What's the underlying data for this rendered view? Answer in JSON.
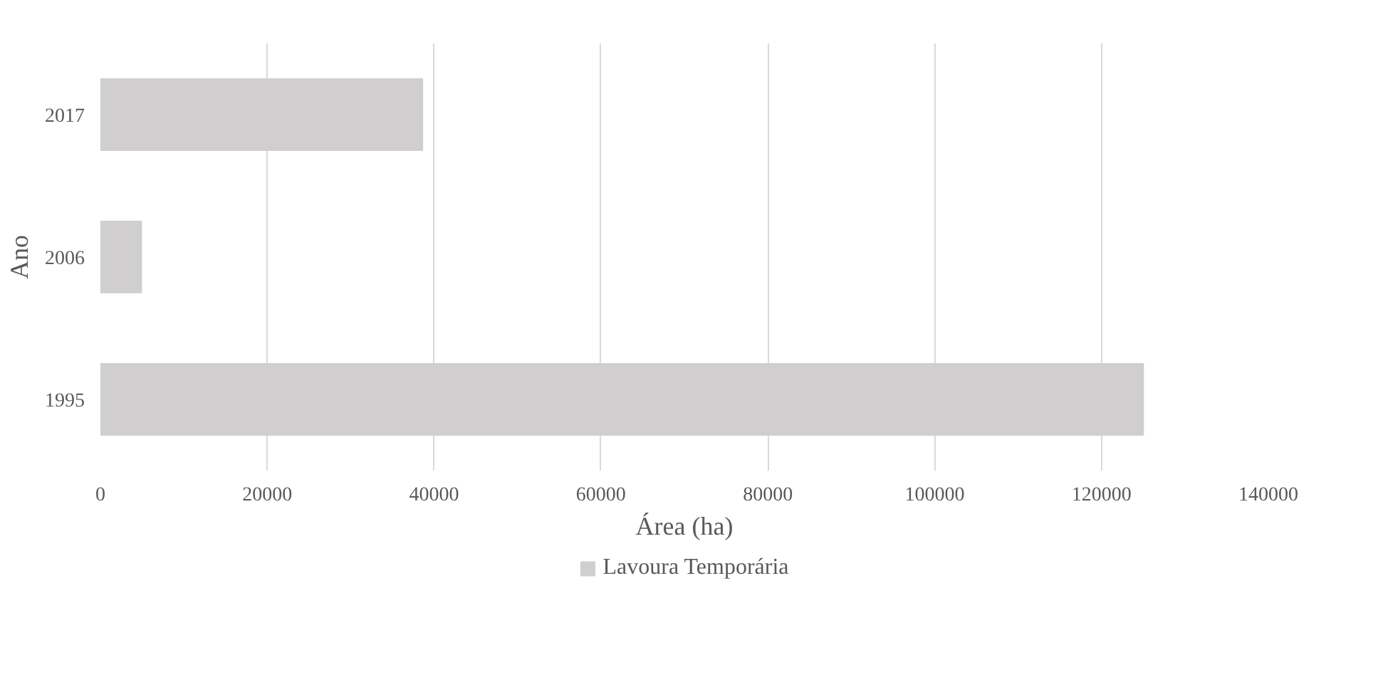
{
  "chart_data": {
    "type": "bar",
    "orientation": "horizontal",
    "categories": [
      "2017",
      "2006",
      "1995"
    ],
    "series": [
      {
        "name": "Lavoura Temporária",
        "color": "#d0cece",
        "values": [
          38600,
          4900,
          125000
        ]
      }
    ],
    "xlim": [
      0,
      140000
    ],
    "xticks": [
      0,
      20000,
      40000,
      60000,
      80000,
      100000,
      120000,
      140000
    ],
    "xlabel": "Área (ha)",
    "ylabel": "Ano",
    "grid": "x",
    "legend": "bottom"
  }
}
